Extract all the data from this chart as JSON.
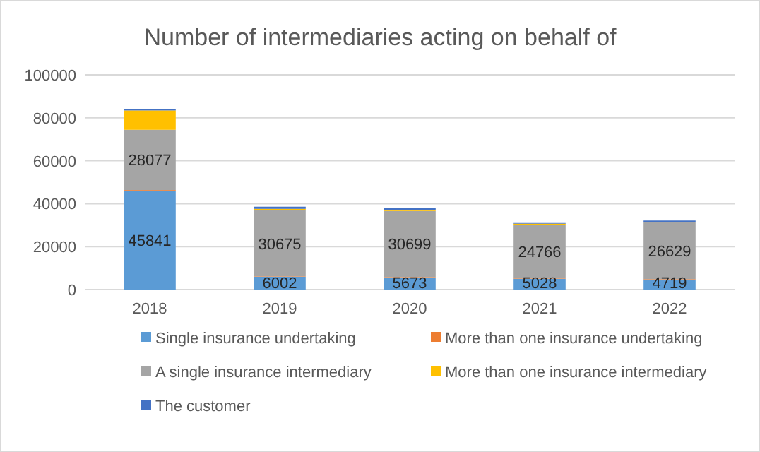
{
  "chart_data": {
    "type": "bar",
    "title": "Number of intermediaries acting on behalf of",
    "stacked": true,
    "categories": [
      "2018",
      "2019",
      "2020",
      "2021",
      "2022"
    ],
    "ylim": [
      0,
      100000
    ],
    "yticks": [
      0,
      20000,
      40000,
      60000,
      80000,
      100000
    ],
    "grid": "y",
    "legend": "bottom",
    "series": [
      {
        "name": "Single insurance undertaking",
        "color": "#5b9bd5",
        "values": [
          45841,
          6002,
          5673,
          5028,
          4719
        ],
        "value_labels": [
          "45841",
          "6002",
          "5673",
          "5028",
          "4719"
        ]
      },
      {
        "name": "More than one insurance undertaking",
        "color": "#ed7d31",
        "values": [
          500,
          200,
          200,
          200,
          200
        ]
      },
      {
        "name": "A single insurance intermediary",
        "color": "#a5a5a5",
        "values": [
          28077,
          30675,
          30699,
          24766,
          26629
        ],
        "value_labels": [
          "28077",
          "30675",
          "30699",
          "24766",
          "26629"
        ]
      },
      {
        "name": "More than one insurance intermediary",
        "color": "#ffc000",
        "values": [
          9000,
          700,
          500,
          700,
          null
        ]
      },
      {
        "name": "The customer",
        "color": "#4472c4",
        "values": [
          500,
          1000,
          1000,
          300,
          600
        ]
      }
    ]
  }
}
